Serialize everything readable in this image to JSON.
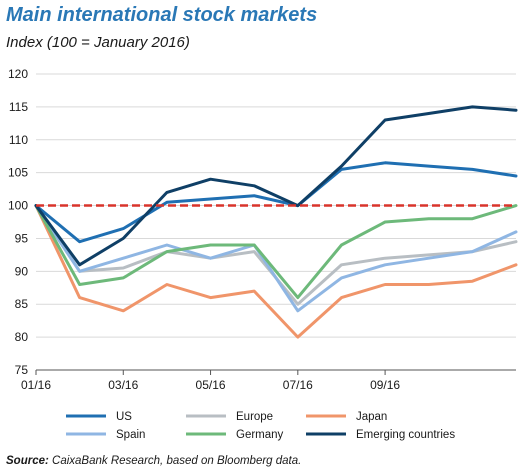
{
  "title": "Main international stock markets",
  "subtitle": "Index (100 = January 2016)",
  "source": {
    "label": "Source:",
    "text": "CaixaBank Research, based on Bloomberg data."
  },
  "chart_data": {
    "type": "line",
    "title": "Main international stock markets",
    "ylabel": "Index (100 = January 2016)",
    "ylim": [
      75,
      120
    ],
    "yticks": [
      "75",
      "80",
      "85",
      "90",
      "95",
      "100",
      "105",
      "110",
      "115",
      "120"
    ],
    "xticks": [
      "01/16",
      "03/16",
      "05/16",
      "07/16",
      "09/16"
    ],
    "x": [
      "Jan-16",
      "Feb-16",
      "Mar-16",
      "Apr-16",
      "May-16",
      "Jun-16",
      "Jul-16",
      "Aug-16",
      "Sep-16",
      "Oct-16",
      "Nov-16",
      "Dec-16"
    ],
    "reference_line": {
      "value": 100,
      "color": "#d9342b",
      "style": "dashed"
    },
    "grid": "horizontal",
    "series": [
      {
        "name": "US",
        "color": "#1f6fb2",
        "values": [
          100,
          94.5,
          96.5,
          100.5,
          101,
          101.5,
          100,
          105.5,
          106.5,
          106,
          105.5,
          104.5
        ]
      },
      {
        "name": "Spain",
        "color": "#8fb6e3",
        "values": [
          100,
          90,
          92,
          94,
          92,
          94,
          84,
          89,
          91,
          92,
          93,
          96
        ]
      },
      {
        "name": "Europe",
        "color": "#b8bec3",
        "values": [
          100,
          90,
          90.5,
          93,
          92,
          93,
          85,
          91,
          92,
          92.5,
          93,
          94.5
        ]
      },
      {
        "name": "Germany",
        "color": "#6db97a",
        "values": [
          100,
          88,
          89,
          93,
          94,
          94,
          86,
          94,
          97.5,
          98,
          98,
          100
        ]
      },
      {
        "name": "Japan",
        "color": "#f0956a",
        "values": [
          100,
          86,
          84,
          88,
          86,
          87,
          80,
          86,
          88,
          88,
          88.5,
          91
        ]
      },
      {
        "name": "Emerging countries",
        "color": "#0f3f66",
        "values": [
          100,
          91,
          95,
          102,
          104,
          103,
          100,
          106,
          113,
          114,
          115,
          114.5
        ]
      }
    ],
    "legend": [
      "US",
      "Europe",
      "Japan",
      "Spain",
      "Germany",
      "Emerging countries"
    ],
    "legend_position": "bottom"
  }
}
